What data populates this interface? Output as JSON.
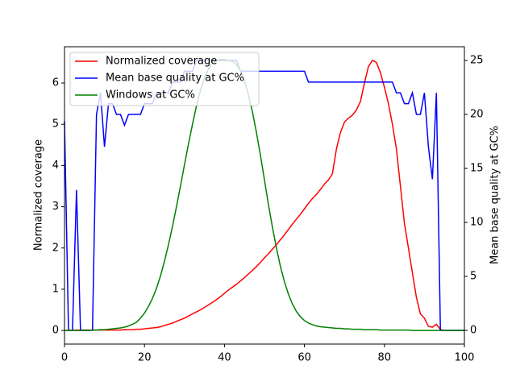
{
  "chart_data": {
    "type": "line",
    "x": [
      0,
      1,
      2,
      3,
      4,
      5,
      6,
      7,
      8,
      9,
      10,
      11,
      12,
      13,
      14,
      15,
      16,
      17,
      18,
      19,
      20,
      21,
      22,
      23,
      24,
      25,
      26,
      27,
      28,
      29,
      30,
      31,
      32,
      33,
      34,
      35,
      36,
      37,
      38,
      39,
      40,
      41,
      42,
      43,
      44,
      45,
      46,
      47,
      48,
      49,
      50,
      51,
      52,
      53,
      54,
      55,
      56,
      57,
      58,
      59,
      60,
      61,
      62,
      63,
      64,
      65,
      66,
      67,
      68,
      69,
      70,
      71,
      72,
      73,
      74,
      75,
      76,
      77,
      78,
      79,
      80,
      81,
      82,
      83,
      84,
      85,
      86,
      87,
      88,
      89,
      90,
      91,
      92,
      93,
      94,
      95,
      96,
      97,
      98,
      99,
      100
    ],
    "series": [
      {
        "name": "Normalized coverage",
        "color": "#ff0000",
        "axis": "y",
        "values": [
          0,
          0,
          0,
          0.01,
          0.01,
          0.01,
          0.01,
          0.01,
          0.01,
          0.01,
          0.01,
          0.01,
          0.01,
          0.01,
          0.01,
          0.02,
          0.02,
          0.02,
          0.03,
          0.03,
          0.04,
          0.05,
          0.06,
          0.07,
          0.09,
          0.12,
          0.15,
          0.18,
          0.22,
          0.26,
          0.3,
          0.35,
          0.4,
          0.45,
          0.5,
          0.56,
          0.62,
          0.68,
          0.75,
          0.82,
          0.9,
          0.98,
          1.05,
          1.12,
          1.2,
          1.28,
          1.37,
          1.46,
          1.55,
          1.65,
          1.76,
          1.86,
          1.97,
          2.08,
          2.2,
          2.32,
          2.45,
          2.58,
          2.7,
          2.82,
          2.95,
          3.08,
          3.2,
          3.3,
          3.42,
          3.55,
          3.65,
          3.8,
          4.4,
          4.8,
          5.05,
          5.15,
          5.22,
          5.35,
          5.55,
          6.0,
          6.4,
          6.55,
          6.5,
          6.25,
          5.9,
          5.5,
          5.0,
          4.4,
          3.5,
          2.6,
          2.0,
          1.4,
          0.8,
          0.4,
          0.3,
          0.1,
          0.08,
          0.15,
          0.02,
          0,
          0,
          0,
          0,
          0,
          0
        ]
      },
      {
        "name": "Mean base quality at GC%",
        "color": "#0000ff",
        "axis": "y2",
        "values": [
          19.4,
          0,
          0,
          13,
          0,
          0,
          0,
          0,
          20,
          22,
          17,
          21,
          21,
          20,
          20,
          19,
          20,
          20,
          20,
          20,
          21,
          21,
          21,
          22,
          22,
          22,
          22,
          23,
          23,
          23,
          24,
          24,
          24,
          25,
          25,
          25,
          25,
          25,
          25,
          25,
          25,
          25,
          25,
          25,
          24,
          24,
          24,
          24,
          24,
          24,
          24,
          24,
          24,
          24,
          24,
          24,
          24,
          24,
          24,
          24,
          24,
          23,
          23,
          23,
          23,
          23,
          23,
          23,
          23,
          23,
          23,
          23,
          23,
          23,
          23,
          23,
          23,
          23,
          23,
          23,
          23,
          23,
          23,
          22,
          22,
          21,
          21,
          22,
          20,
          20,
          22,
          17,
          14,
          22,
          0,
          0,
          0,
          0,
          0,
          0,
          0
        ]
      },
      {
        "name": "Windows at GC%",
        "color": "#008000",
        "axis": "y",
        "values": [
          0,
          0,
          0,
          0,
          0,
          0,
          0,
          0.01,
          0.01,
          0.02,
          0.02,
          0.03,
          0.04,
          0.05,
          0.06,
          0.08,
          0.11,
          0.15,
          0.2,
          0.3,
          0.42,
          0.58,
          0.78,
          1.02,
          1.32,
          1.68,
          2.08,
          2.52,
          3.0,
          3.5,
          4.02,
          4.52,
          5.0,
          5.45,
          5.82,
          6.12,
          6.34,
          6.48,
          6.55,
          6.57,
          6.57,
          6.55,
          6.52,
          6.45,
          6.3,
          6.05,
          5.72,
          5.3,
          4.8,
          4.25,
          3.65,
          3.05,
          2.5,
          2.0,
          1.55,
          1.18,
          0.88,
          0.64,
          0.46,
          0.33,
          0.24,
          0.18,
          0.14,
          0.11,
          0.09,
          0.08,
          0.07,
          0.06,
          0.05,
          0.05,
          0.04,
          0.04,
          0.03,
          0.03,
          0.03,
          0.02,
          0.02,
          0.02,
          0.02,
          0.01,
          0.01,
          0.01,
          0.01,
          0.01,
          0.01,
          0.01,
          0.01,
          0,
          0,
          0,
          0,
          0,
          0,
          0,
          0,
          0,
          0,
          0,
          0,
          0,
          0
        ]
      }
    ],
    "xlim": [
      0,
      100
    ],
    "xticks": [
      0,
      20,
      40,
      60,
      80,
      100
    ],
    "ylim": [
      -0.33,
      6.88
    ],
    "yticks": [
      0,
      1,
      2,
      3,
      4,
      5,
      6
    ],
    "y2lim": [
      -1.27,
      26.27
    ],
    "y2ticks": [
      0,
      5,
      10,
      15,
      20,
      25
    ],
    "ylabel": "Normalized coverage",
    "y2label": "Mean base quality at GC%",
    "legend": "upper left",
    "grid": false
  }
}
